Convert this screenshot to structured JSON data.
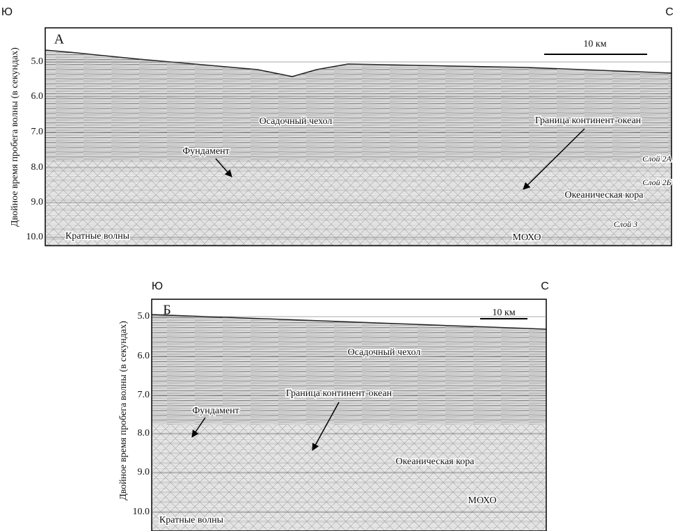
{
  "panels": [
    {
      "letter": "А",
      "left_direction": "Ю",
      "right_direction": "С",
      "y_axis_label": "Двойное время пробега волны (в секундах)",
      "yticks": [
        "5.0",
        "6.0",
        "7.0",
        "8.0",
        "9.0",
        "10.0"
      ],
      "scale": "10 км",
      "annotations": [
        "Осадочный чехол",
        "Граница континент-океан",
        "Фундамент",
        "Слой 2А",
        "Слой 2Б",
        "Океаническая кора",
        "Слой 3",
        "Кратные волны",
        "МОХО"
      ]
    },
    {
      "letter": "Б",
      "left_direction": "Ю",
      "right_direction": "С",
      "y_axis_label": "Двойное время пробега волны (в секундах)",
      "yticks": [
        "5.0",
        "6.0",
        "7.0",
        "8.0",
        "9.0",
        "10.0"
      ],
      "scale": "10 км",
      "annotations": [
        "Осадочный чехол",
        "Граница континент-океан",
        "Фундамент",
        "Океаническая кора",
        "МОХО",
        "Кратные волны"
      ]
    }
  ]
}
